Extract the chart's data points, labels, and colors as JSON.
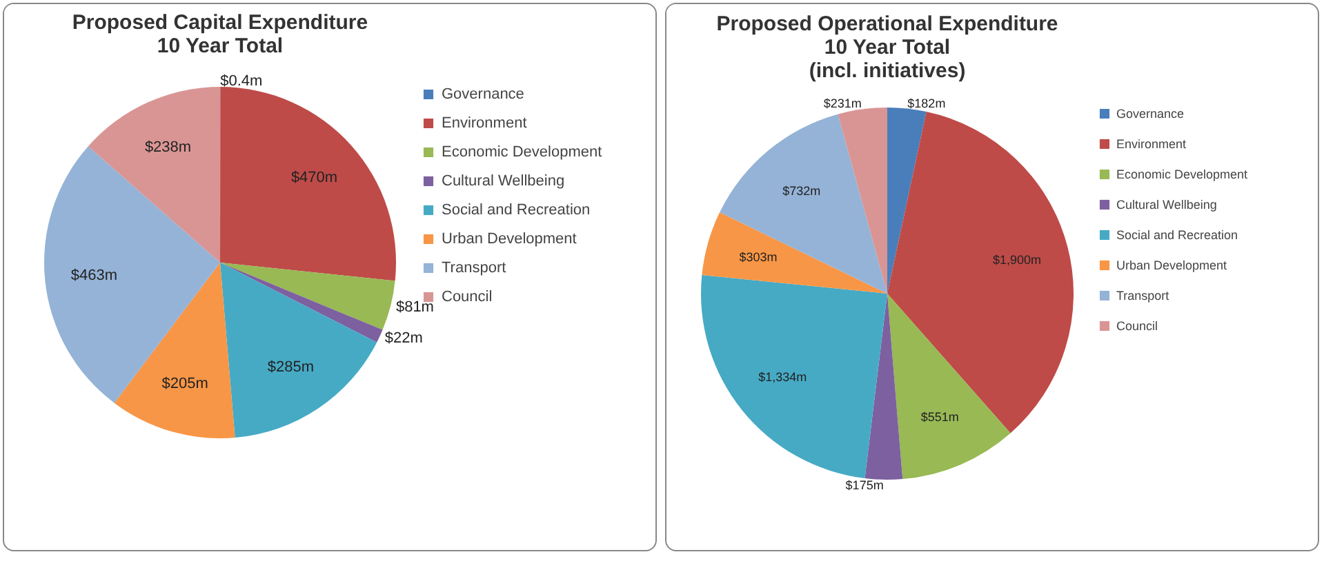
{
  "chart_data": [
    {
      "type": "pie",
      "title": "Proposed Capital Expenditure\n10 Year Total",
      "categories": [
        "Governance",
        "Environment",
        "Economic Development",
        "Cultural Wellbeing",
        "Social and Recreation",
        "Urban Development",
        "Transport",
        "Council"
      ],
      "values": [
        0.4,
        470,
        81,
        22,
        285,
        205,
        463,
        238
      ],
      "value_labels": [
        "$0.4m",
        "$470m",
        "$81m",
        "$22m",
        "$285m",
        "$205m",
        "$463m",
        "$238m"
      ],
      "colors": [
        "#4a7ebb",
        "#be4b48",
        "#98b954",
        "#7d60a0",
        "#46aac5",
        "#f79646",
        "#95b3d7",
        "#d99594"
      ],
      "legend": "right"
    },
    {
      "type": "pie",
      "title": "Proposed Operational Expenditure\n10 Year Total\n(incl. initiatives)",
      "categories": [
        "Governance",
        "Environment",
        "Economic Development",
        "Cultural Wellbeing",
        "Social and Recreation",
        "Urban Development",
        "Transport",
        "Council"
      ],
      "values": [
        182,
        1900,
        551,
        175,
        1334,
        303,
        732,
        231
      ],
      "value_labels": [
        "$182m",
        "$1,900m",
        "$551m",
        "$175m",
        "$1,334m",
        "$303m",
        "$732m",
        "$231m"
      ],
      "colors": [
        "#4a7ebb",
        "#be4b48",
        "#98b954",
        "#7d60a0",
        "#46aac5",
        "#f79646",
        "#95b3d7",
        "#d99594"
      ],
      "legend": "right"
    }
  ]
}
